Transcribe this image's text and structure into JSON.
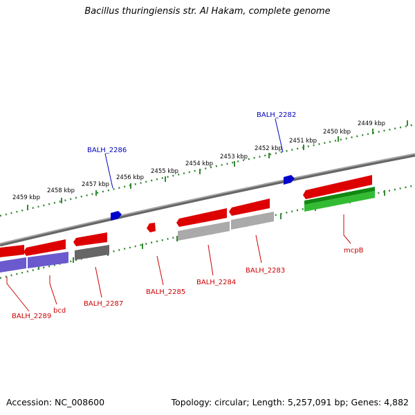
{
  "title": "Bacillus thuringiensis str. Al Hakam, complete genome",
  "footer": {
    "accession": "Accession: NC_008600",
    "stats": "Topology: circular; Length: 5,257,091 bp; Genes: 4,882"
  },
  "scale_labels": [
    "2459 kbp",
    "2458 kbp",
    "2457 kbp",
    "2456 kbp",
    "2455 kbp",
    "2454 kbp",
    "2453 kbp",
    "2452 kbp",
    "2451 kbp",
    "2450 kbp",
    "2449 kbp"
  ],
  "genes": [
    {
      "label": "BALH_2289",
      "strand": "reverse",
      "color": "#dd0000"
    },
    {
      "label": "bcd",
      "strand": "reverse",
      "color": "#dd0000"
    },
    {
      "label": "BALH_2287",
      "strand": "reverse",
      "color": "#dd0000"
    },
    {
      "label": "BALH_2286",
      "strand": "forward",
      "color": "#0000cc"
    },
    {
      "label": "BALH_2285",
      "strand": "reverse",
      "color": "#dd0000"
    },
    {
      "label": "BALH_2284",
      "strand": "reverse",
      "color": "#dd0000"
    },
    {
      "label": "BALH_2283",
      "strand": "reverse",
      "color": "#dd0000"
    },
    {
      "label": "BALH_2282",
      "strand": "forward",
      "color": "#0000cc"
    },
    {
      "label": "mcpB",
      "strand": "reverse",
      "color": "#dd0000"
    }
  ],
  "colors": {
    "backbone": "#777777",
    "scale_tick": "#338833",
    "gene_red": "#dd0000",
    "gene_blue": "#0000cc",
    "feature_purple": "#6a5acd",
    "feature_gray": "#666666",
    "feature_lightgray": "#aaaaaa",
    "feature_green": "#22aa22"
  }
}
